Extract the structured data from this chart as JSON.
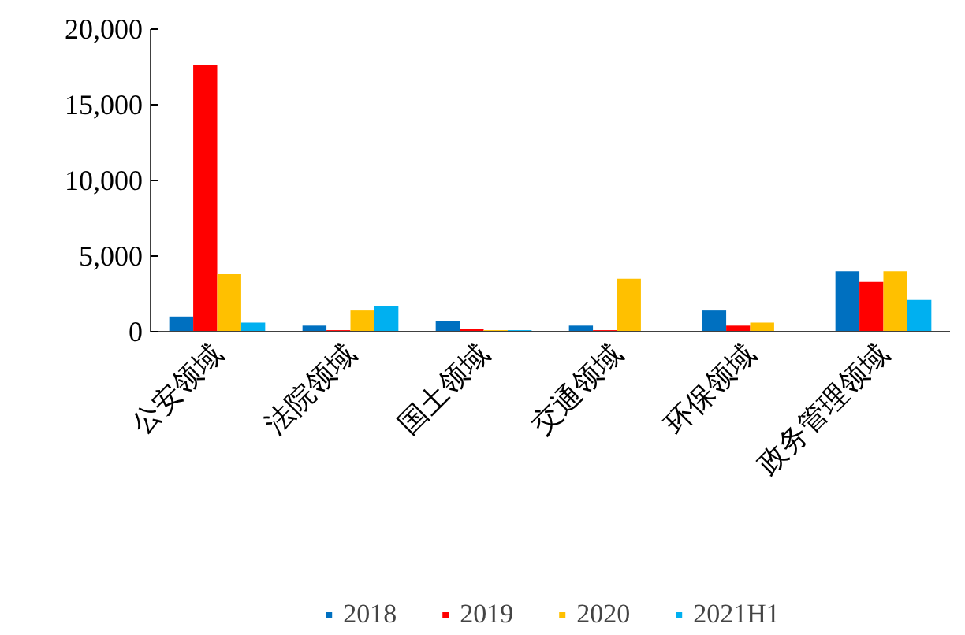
{
  "chart_data": {
    "type": "bar",
    "categories": [
      "公安领域",
      "法院领域",
      "国土领域",
      "交通领域",
      "环保领域",
      "政务管理领域"
    ],
    "series": [
      {
        "name": "2018",
        "color": "#0070c0",
        "values": [
          1000,
          400,
          700,
          400,
          1400,
          4000
        ]
      },
      {
        "name": "2019",
        "color": "#ff0000",
        "values": [
          17600,
          100,
          200,
          100,
          400,
          3300
        ]
      },
      {
        "name": "2020",
        "color": "#ffc000",
        "values": [
          3800,
          1400,
          100,
          3500,
          600,
          4000
        ]
      },
      {
        "name": "2021H1",
        "color": "#00b0f0",
        "values": [
          600,
          1700,
          100,
          null,
          null,
          2100
        ]
      }
    ],
    "ylim": [
      0,
      20000
    ],
    "yticks": [
      {
        "value": 0,
        "label": "0"
      },
      {
        "value": 5000,
        "label": "5,000"
      },
      {
        "value": 10000,
        "label": "10,000"
      },
      {
        "value": 15000,
        "label": "15,000"
      },
      {
        "value": 20000,
        "label": "20,000"
      }
    ],
    "grid": false,
    "legend": "bottom"
  }
}
